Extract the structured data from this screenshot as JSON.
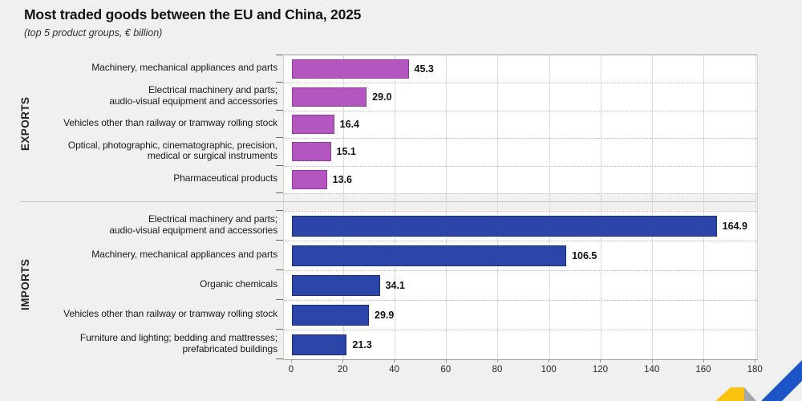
{
  "header": {
    "title": "Most traded goods between the EU and China, 2025",
    "subtitle": "(top 5 product groups, € billion)"
  },
  "chart_data": {
    "type": "bar",
    "orientation": "horizontal",
    "unit": "€ billion",
    "xlim": [
      0,
      180
    ],
    "x_ticks": [
      0,
      20,
      40,
      60,
      80,
      100,
      120,
      140,
      160,
      180
    ],
    "grid": true,
    "legend": false,
    "groups": [
      {
        "name": "EXPORTS",
        "bar_color": "#b356bf",
        "bar_border": "#8f3d9c",
        "rows": [
          {
            "label_lines": [
              "Machinery, mechanical appliances and parts"
            ],
            "value": 45.3
          },
          {
            "label_lines": [
              "Electrical machinery and parts;",
              "audio-visual equipment and accessories"
            ],
            "value": 29.0
          },
          {
            "label_lines": [
              "Vehicles other than railway or tramway rolling stock"
            ],
            "value": 16.4
          },
          {
            "label_lines": [
              "Optical, photographic, cinematographic, precision,",
              "medical or surgical instruments"
            ],
            "value": 15.1
          },
          {
            "label_lines": [
              "Pharmaceutical products"
            ],
            "value": 13.6
          }
        ]
      },
      {
        "name": "IMPORTS",
        "bar_color": "#2b46a8",
        "bar_border": "#1b2d78",
        "rows": [
          {
            "label_lines": [
              "Electrical machinery and parts;",
              "audio-visual equipment and accessories"
            ],
            "value": 164.9
          },
          {
            "label_lines": [
              "Machinery, mechanical appliances and parts"
            ],
            "value": 106.5
          },
          {
            "label_lines": [
              "Organic chemicals"
            ],
            "value": 34.1
          },
          {
            "label_lines": [
              "Vehicles other than railway or tramway rolling stock"
            ],
            "value": 29.9
          },
          {
            "label_lines": [
              "Furniture and lighting; bedding and mattresses;",
              "prefabricated buildings"
            ],
            "value": 21.3
          }
        ]
      }
    ]
  },
  "logo": {
    "colors": {
      "blue": "#1d55c9",
      "yellow": "#fbc30e",
      "gray": "#a3a8ad"
    }
  }
}
